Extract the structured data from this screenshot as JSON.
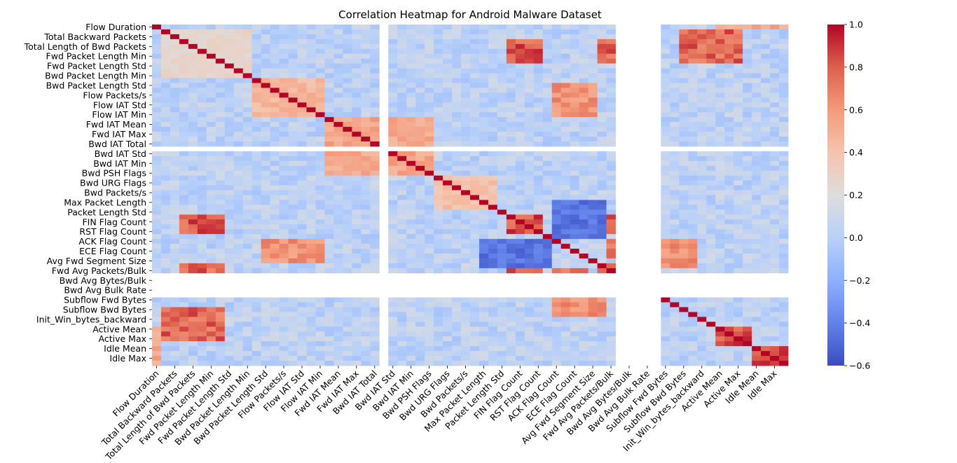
{
  "chart_data": {
    "type": "heatmap",
    "title": "Correlation Heatmap for Android Malware Dataset",
    "colormap": "coolwarm",
    "colors": {
      "low": "#3b4cc0",
      "mid": "#dddddd",
      "high": "#b40426"
    },
    "vmin": -0.6,
    "vmax": 1.0,
    "colorbar_ticks": [
      "1.0",
      "0.8",
      "0.6",
      "0.4",
      "0.2",
      "0.0",
      "−0.2",
      "−0.4",
      "−0.6"
    ],
    "colorbar_tick_values": [
      1.0,
      0.8,
      0.6,
      0.4,
      0.2,
      0.0,
      -0.2,
      -0.4,
      -0.6
    ],
    "grid": false,
    "ytick_labels": [
      "Flow Duration",
      "Total Backward Packets",
      "Total Length of Bwd Packets",
      "Fwd Packet Length Min",
      "Fwd Packet Length Std",
      "Bwd Packet Length Min",
      "Bwd Packet Length Std",
      "Flow Packets/s",
      "Flow IAT Std",
      "Flow IAT Min",
      "Fwd IAT Mean",
      "Fwd IAT Max",
      "Bwd IAT Total",
      "Bwd IAT Std",
      "Bwd IAT Min",
      "Bwd PSH Flags",
      "Bwd URG Flags",
      "Bwd Packets/s",
      "Max Packet Length",
      "Packet Length Std",
      "FIN Flag Count",
      "RST Flag Count",
      "ACK Flag Count",
      "ECE Flag Count",
      "Avg Fwd Segment Size",
      "Fwd Avg Packets/Bulk",
      "Bwd Avg Bytes/Bulk",
      "Bwd Avg Bulk Rate",
      "Subflow Fwd Bytes",
      "Subflow Bwd Bytes",
      "Init_Win_bytes_backward",
      "Active Mean",
      "Active Max",
      "Idle Mean",
      "Idle Max"
    ],
    "xtick_labels": [
      "Flow Duration",
      "Total Backward Packets",
      "Total Length of Bwd Packets",
      "Fwd Packet Length Min",
      "Fwd Packet Length Std",
      "Bwd Packet Length Min",
      "Bwd Packet Length Std",
      "Flow Packets/s",
      "Flow IAT Std",
      "Flow IAT Min",
      "Fwd IAT Mean",
      "Fwd IAT Max",
      "Bwd IAT Total",
      "Bwd IAT Std",
      "Bwd IAT Min",
      "Bwd PSH Flags",
      "Bwd URG Flags",
      "Bwd Packets/s",
      "Max Packet Length",
      "Packet Length Std",
      "FIN Flag Count",
      "RST Flag Count",
      "ACK Flag Count",
      "ECE Flag Count",
      "Avg Fwd Segment Size",
      "Fwd Avg Packets/Bulk",
      "Bwd Avg Bytes/Bulk",
      "Bwd Avg Bulk Rate",
      "Subflow Fwd Bytes",
      "Subflow Bwd Bytes",
      "Init_Win_bytes_backward",
      "Active Mean",
      "Active Max",
      "Idle Mean",
      "Idle Max"
    ],
    "n_features": 70,
    "constant_features": [
      25,
      51,
      52,
      53,
      54,
      55
    ],
    "blocks": [
      {
        "rows": [
          1,
          11
        ],
        "cols": [
          1,
          11
        ],
        "value": 0.3
      },
      {
        "rows": [
          11,
          19
        ],
        "cols": [
          11,
          19
        ],
        "value": 0.5
      },
      {
        "rows": [
          19,
          31
        ],
        "cols": [
          19,
          31
        ],
        "value": 0.6
      },
      {
        "rows": [
          31,
          38
        ],
        "cols": [
          31,
          38
        ],
        "value": 0.45
      },
      {
        "rows": [
          39,
          43
        ],
        "cols": [
          39,
          43
        ],
        "value": 0.9
      },
      {
        "rows": [
          49,
          52
        ],
        "cols": [
          49,
          52
        ],
        "value": 0.9
      },
      {
        "rows": [
          3,
          8
        ],
        "cols": [
          39,
          43
        ],
        "value": 0.9
      },
      {
        "rows": [
          3,
          8
        ],
        "cols": [
          49,
          52
        ],
        "value": 0.85
      },
      {
        "rows": [
          39,
          43
        ],
        "cols": [
          49,
          52
        ],
        "value": 0.9
      },
      {
        "rows": [
          44,
          49
        ],
        "cols": [
          12,
          19
        ],
        "value": 0.7
      },
      {
        "rows": [
          56,
          60
        ],
        "cols": [
          44,
          50
        ],
        "value": 0.7
      },
      {
        "rows": [
          62,
          66
        ],
        "cols": [
          62,
          66
        ],
        "value": 0.9
      },
      {
        "rows": [
          66,
          70
        ],
        "cols": [
          66,
          70
        ],
        "value": 0.95
      },
      {
        "rows": [
          62,
          70
        ],
        "cols": [
          0,
          1
        ],
        "value": 0.6
      },
      {
        "rows": [
          1,
          8
        ],
        "cols": [
          58,
          65
        ],
        "value": 0.85
      },
      {
        "rows": [
          44,
          50
        ],
        "cols": [
          36,
          44
        ],
        "value": -0.5
      },
      {
        "rows": [
          44,
          48
        ],
        "cols": [
          50,
          52
        ],
        "value": 0.8
      }
    ]
  }
}
